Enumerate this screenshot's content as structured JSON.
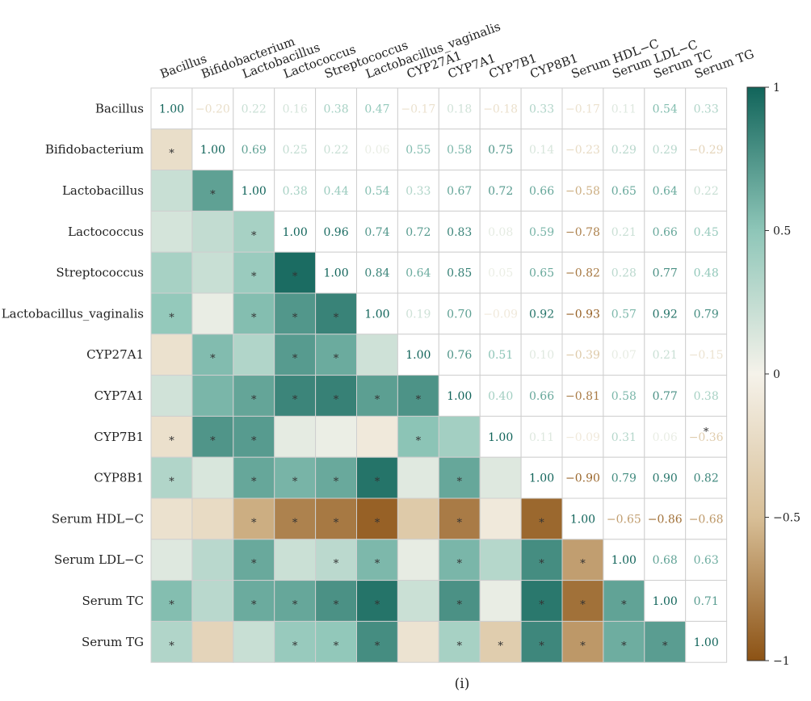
{
  "chart_data": {
    "type": "heatmap",
    "title": "",
    "variables": [
      "Bacillus",
      "Bifidobacterium",
      "Lactobacillus",
      "Lactococcus",
      "Streptococcus",
      "Lactobacillus_vaginalis",
      "CYP27A1",
      "CYP7A1",
      "CYP7B1",
      "CYP8B1",
      "Serum HDL−C",
      "Serum LDL−C",
      "Serum TC",
      "Serum TG"
    ],
    "matrix": [
      [
        1.0,
        -0.2,
        0.22,
        0.16,
        0.38,
        0.47,
        -0.17,
        0.18,
        -0.18,
        0.33,
        -0.17,
        0.11,
        0.54,
        0.33
      ],
      [
        -0.2,
        1.0,
        0.69,
        0.25,
        0.22,
        0.06,
        0.55,
        0.58,
        0.75,
        0.14,
        -0.23,
        0.29,
        0.29,
        -0.29
      ],
      [
        0.22,
        0.69,
        1.0,
        0.38,
        0.44,
        0.54,
        0.33,
        0.67,
        0.72,
        0.66,
        -0.58,
        0.65,
        0.64,
        0.22
      ],
      [
        0.16,
        0.25,
        0.38,
        1.0,
        0.96,
        0.74,
        0.72,
        0.83,
        0.08,
        0.59,
        -0.78,
        0.21,
        0.66,
        0.45
      ],
      [
        0.38,
        0.22,
        0.44,
        0.96,
        1.0,
        0.84,
        0.64,
        0.85,
        0.05,
        0.65,
        -0.82,
        0.28,
        0.77,
        0.48
      ],
      [
        0.47,
        0.06,
        0.54,
        0.74,
        0.84,
        1.0,
        0.19,
        0.7,
        -0.09,
        0.92,
        -0.93,
        0.57,
        0.92,
        0.79
      ],
      [
        -0.17,
        0.55,
        0.33,
        0.72,
        0.64,
        0.19,
        1.0,
        0.76,
        0.51,
        0.1,
        -0.39,
        0.07,
        0.21,
        -0.15
      ],
      [
        0.18,
        0.58,
        0.67,
        0.83,
        0.85,
        0.7,
        0.76,
        1.0,
        0.4,
        0.66,
        -0.81,
        0.58,
        0.77,
        0.38
      ],
      [
        -0.18,
        0.75,
        0.72,
        0.08,
        0.05,
        -0.09,
        0.51,
        0.4,
        1.0,
        0.11,
        -0.09,
        0.31,
        0.06,
        -0.36
      ],
      [
        0.33,
        0.14,
        0.66,
        0.59,
        0.65,
        0.92,
        0.1,
        0.66,
        0.11,
        1.0,
        -0.9,
        0.79,
        0.9,
        0.82
      ],
      [
        -0.17,
        -0.23,
        -0.58,
        -0.78,
        -0.82,
        -0.93,
        -0.39,
        -0.81,
        -0.09,
        -0.9,
        1.0,
        -0.65,
        -0.86,
        -0.68
      ],
      [
        0.11,
        0.29,
        0.65,
        0.21,
        0.28,
        0.57,
        0.07,
        0.58,
        0.31,
        0.79,
        -0.65,
        1.0,
        0.68,
        0.63
      ],
      [
        0.54,
        0.29,
        0.64,
        0.66,
        0.77,
        0.92,
        0.21,
        0.77,
        0.06,
        0.9,
        -0.86,
        0.68,
        1.0,
        0.71
      ],
      [
        0.33,
        -0.29,
        0.22,
        0.45,
        0.48,
        0.79,
        -0.15,
        0.38,
        -0.36,
        0.82,
        -0.68,
        0.63,
        0.71,
        1.0
      ]
    ],
    "significance_mark": "*",
    "significant": [
      [],
      [
        0
      ],
      [
        1
      ],
      [
        2
      ],
      [
        2,
        3
      ],
      [
        0,
        2,
        3,
        4
      ],
      [
        1,
        3,
        4
      ],
      [
        2,
        3,
        4,
        5,
        6
      ],
      [
        0,
        1,
        2,
        6
      ],
      [
        0,
        2,
        3,
        4,
        5,
        7
      ],
      [
        2,
        3,
        4,
        5,
        7,
        9
      ],
      [
        2,
        4,
        5,
        7,
        9,
        10
      ],
      [
        0,
        2,
        3,
        4,
        5,
        7,
        9,
        10,
        11
      ],
      [
        0,
        3,
        4,
        5,
        7,
        8,
        9,
        10,
        11,
        12
      ]
    ],
    "upper_star": [
      [
        8,
        13
      ]
    ],
    "display": {
      "upper_triangle": "numbers",
      "lower_triangle": "colored cells",
      "diagonal": "numbers"
    },
    "value_range": [
      -1,
      1
    ],
    "colorbar": {
      "ticks": [
        1,
        0.5,
        0,
        -0.5,
        -1
      ],
      "tick_labels": [
        "1",
        "0.5",
        "0",
        "−0.5",
        "−1"
      ],
      "placement": "right"
    },
    "colors": {
      "negative": "#8c5214",
      "mid_negative": "#d8bf97",
      "zero": "#f5f2ea",
      "mid_positive": "#8ec6b8",
      "positive": "#11645a",
      "grid_line": "#cfcfcf"
    },
    "caption": "(i)"
  }
}
